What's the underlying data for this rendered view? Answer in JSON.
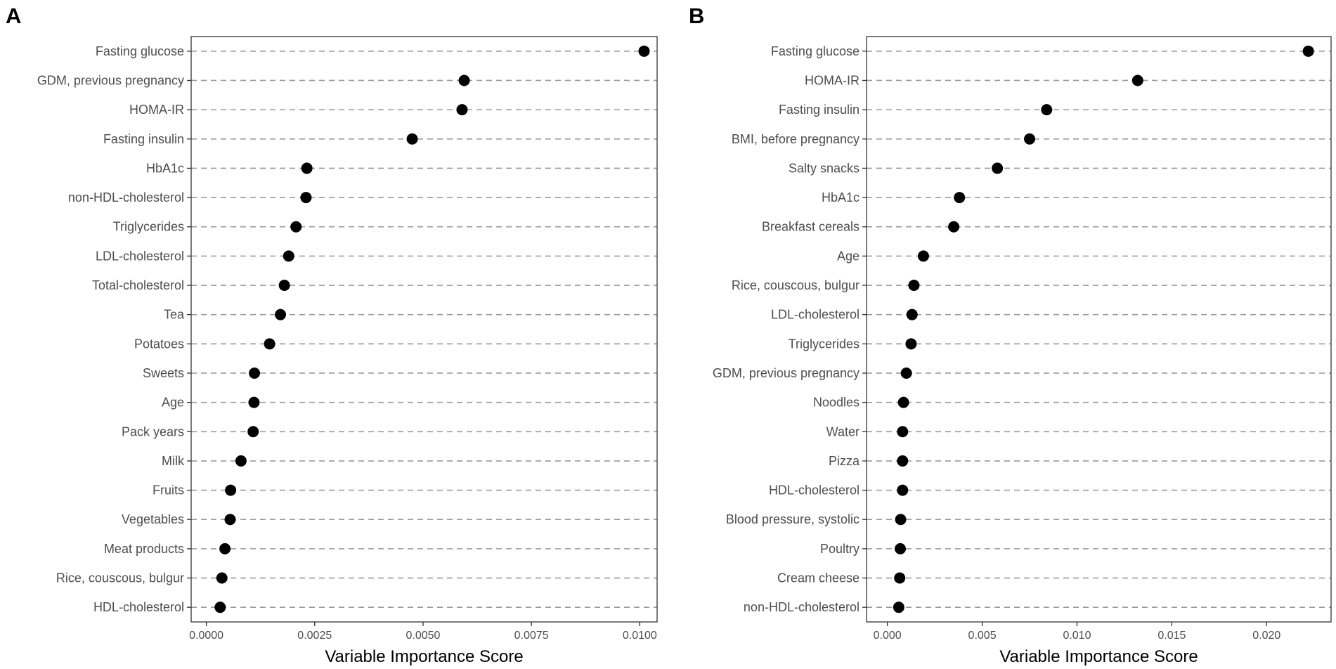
{
  "chart_data": [
    {
      "panel": "A",
      "type": "scatter",
      "title": "",
      "xlabel": "Variable Importance Score",
      "ylabel": "",
      "xlim": [
        -0.00035,
        0.0104
      ],
      "x_ticks": [
        0.0,
        0.0025,
        0.005,
        0.0075,
        0.01
      ],
      "x_tick_labels": [
        "0.0000",
        "0.0025",
        "0.0050",
        "0.0075",
        "0.0100"
      ],
      "grid": "horizontal dashed",
      "categories": [
        "Fasting glucose",
        "GDM, previous pregnancy",
        "HOMA-IR",
        "Fasting insulin",
        "HbA1c",
        "non-HDL-cholesterol",
        "Triglycerides",
        "LDL-cholesterol",
        "Total-cholesterol",
        "Tea",
        "Potatoes",
        "Sweets",
        "Age",
        "Pack years",
        "Milk",
        "Fruits",
        "Vegetables",
        "Meat products",
        "Rice, couscous, bulgur",
        "HDL-cholesterol"
      ],
      "values": [
        0.0101,
        0.00595,
        0.0059,
        0.00475,
        0.00232,
        0.0023,
        0.00207,
        0.0019,
        0.0018,
        0.00171,
        0.00146,
        0.00111,
        0.0011,
        0.00108,
        0.0008,
        0.00056,
        0.00055,
        0.00043,
        0.00036,
        0.00032
      ]
    },
    {
      "panel": "B",
      "type": "scatter",
      "title": "",
      "xlabel": "Variable Importance Score",
      "ylabel": "",
      "xlim": [
        -0.0011,
        0.0234
      ],
      "x_ticks": [
        0.0,
        0.005,
        0.01,
        0.015,
        0.02
      ],
      "x_tick_labels": [
        "0.000",
        "0.005",
        "0.010",
        "0.015",
        "0.020"
      ],
      "grid": "horizontal dashed",
      "categories": [
        "Fasting glucose",
        "HOMA-IR",
        "Fasting insulin",
        "BMI, before pregnancy",
        "Salty snacks",
        "HbA1c",
        "Breakfast cereals",
        "Age",
        "Rice, couscous, bulgur",
        "LDL-cholesterol",
        "Triglycerides",
        "GDM, previous pregnancy",
        "Noodles",
        "Water",
        "Pizza",
        "HDL-cholesterol",
        "Blood pressure, systolic",
        "Poultry",
        "Cream cheese",
        "non-HDL-cholesterol"
      ],
      "values": [
        0.0222,
        0.0132,
        0.0084,
        0.0075,
        0.0058,
        0.0038,
        0.0035,
        0.0019,
        0.0014,
        0.0013,
        0.00125,
        0.001,
        0.00085,
        0.0008,
        0.0008,
        0.0008,
        0.0007,
        0.00068,
        0.00065,
        0.0006
      ]
    }
  ]
}
